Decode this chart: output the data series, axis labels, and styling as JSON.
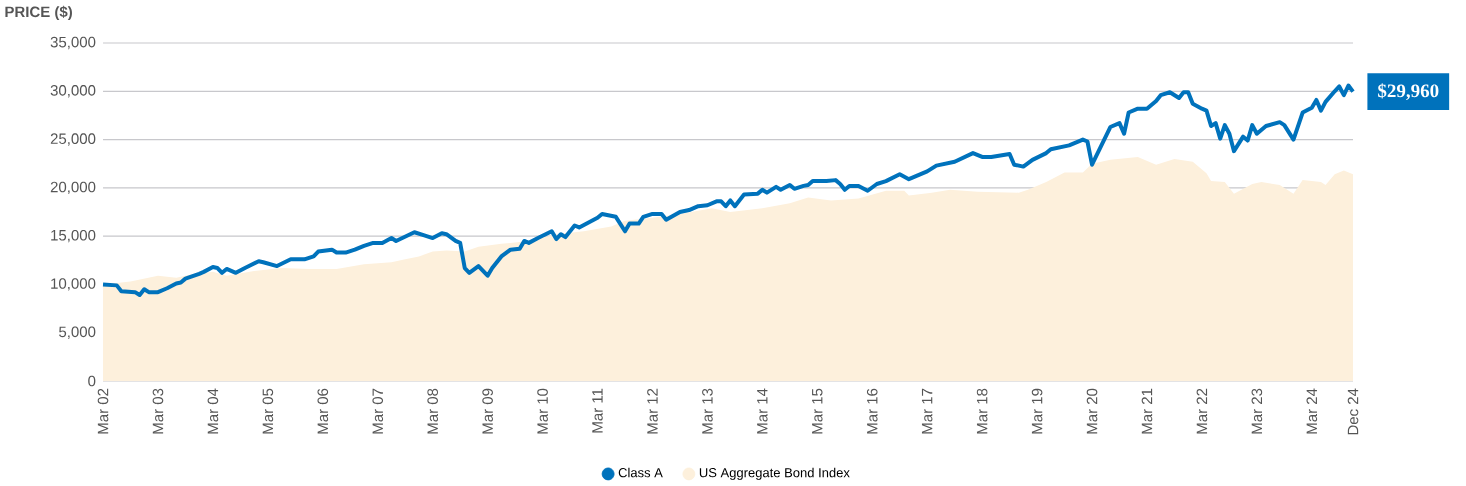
{
  "chart_data": {
    "type": "line",
    "ylabel": "PRICE ($)",
    "xlim": [
      "2002-03",
      "2024-12"
    ],
    "xticks": [
      {
        "value": "2002-03",
        "label": "Mar 02"
      },
      {
        "value": "2003-03",
        "label": "Mar 03"
      },
      {
        "value": "2004-03",
        "label": "Mar 04"
      },
      {
        "value": "2005-03",
        "label": "Mar 05"
      },
      {
        "value": "2006-03",
        "label": "Mar 06"
      },
      {
        "value": "2007-03",
        "label": "Mar 07"
      },
      {
        "value": "2008-03",
        "label": "Mar 08"
      },
      {
        "value": "2009-03",
        "label": "Mar 09"
      },
      {
        "value": "2010-03",
        "label": "Mar 10"
      },
      {
        "value": "2011-03",
        "label": "Mar 11"
      },
      {
        "value": "2012-03",
        "label": "Mar 12"
      },
      {
        "value": "2013-03",
        "label": "Mar 13"
      },
      {
        "value": "2014-03",
        "label": "Mar 14"
      },
      {
        "value": "2015-03",
        "label": "Mar 15"
      },
      {
        "value": "2016-03",
        "label": "Mar 16"
      },
      {
        "value": "2017-03",
        "label": "Mar 17"
      },
      {
        "value": "2018-03",
        "label": "Mar 18"
      },
      {
        "value": "2019-03",
        "label": "Mar 19"
      },
      {
        "value": "2020-03",
        "label": "Mar 20"
      },
      {
        "value": "2021-03",
        "label": "Mar 21"
      },
      {
        "value": "2022-03",
        "label": "Mar 22"
      },
      {
        "value": "2023-03",
        "label": "Mar 23"
      },
      {
        "value": "2024-03",
        "label": "Mar 24"
      },
      {
        "value": "2024-12",
        "label": "Dec 24"
      }
    ],
    "ylim": [
      0,
      35000
    ],
    "yticks": [
      0,
      {
        "value": 5000,
        "label": "5,000"
      },
      {
        "value": 10000,
        "label": "10,000"
      },
      {
        "value": 15000,
        "label": "15,000"
      },
      {
        "value": 20000,
        "label": "20,000"
      },
      {
        "value": 25000,
        "label": "25,000"
      },
      {
        "value": 30000,
        "label": "30,000"
      },
      {
        "value": 35000,
        "label": "35,000"
      }
    ],
    "grid": "y",
    "legend": "bottom",
    "annotations": [
      {
        "text": "$29,960",
        "x": "2024-12",
        "y": 29960
      }
    ],
    "series": [
      {
        "name": "Class A",
        "color": "#0072bc",
        "x": [
          "2002-03",
          "2002-06",
          "2002-07",
          "2002-10",
          "2002-11",
          "2002-12",
          "2003-01",
          "2003-03",
          "2003-05",
          "2003-07",
          "2003-08",
          "2003-09",
          "2003-12",
          "2004-01",
          "2004-03",
          "2004-04",
          "2004-05",
          "2004-06",
          "2004-08",
          "2004-10",
          "2005-01",
          "2005-02",
          "2005-05",
          "2005-08",
          "2005-11",
          "2006-01",
          "2006-02",
          "2006-05",
          "2006-06",
          "2006-08",
          "2006-10",
          "2006-12",
          "2007-02",
          "2007-04",
          "2007-06",
          "2007-07",
          "2007-11",
          "2008-01",
          "2008-03",
          "2008-05",
          "2008-06",
          "2008-08",
          "2008-09",
          "2008-10",
          "2008-11",
          "2009-01",
          "2009-03",
          "2009-04",
          "2009-06",
          "2009-08",
          "2009-10",
          "2009-11",
          "2009-12",
          "2010-02",
          "2010-05",
          "2010-06",
          "2010-07",
          "2010-08",
          "2010-10",
          "2010-11",
          "2011-01",
          "2011-03",
          "2011-04",
          "2011-07",
          "2011-09",
          "2011-10",
          "2011-12",
          "2012-01",
          "2012-03",
          "2012-05",
          "2012-06",
          "2012-09",
          "2012-11",
          "2013-01",
          "2013-03",
          "2013-05",
          "2013-06",
          "2013-07",
          "2013-08",
          "2013-09",
          "2013-11",
          "2014-02",
          "2014-03",
          "2014-04",
          "2014-06",
          "2014-07",
          "2014-09",
          "2014-10",
          "2014-12",
          "2015-01",
          "2015-02",
          "2015-05",
          "2015-07",
          "2015-08",
          "2015-09",
          "2015-10",
          "2015-12",
          "2016-02",
          "2016-04",
          "2016-06",
          "2016-09",
          "2016-11",
          "2017-03",
          "2017-05",
          "2017-09",
          "2018-01",
          "2018-03",
          "2018-05",
          "2018-09",
          "2018-10",
          "2018-12",
          "2019-02",
          "2019-05",
          "2019-06",
          "2019-10",
          "2020-01",
          "2020-02",
          "2020-03",
          "2020-07",
          "2020-09",
          "2020-10",
          "2020-11",
          "2021-01",
          "2021-03",
          "2021-05",
          "2021-06",
          "2021-08",
          "2021-10",
          "2021-11",
          "2021-12",
          "2022-01",
          "2022-03",
          "2022-04",
          "2022-05",
          "2022-06",
          "2022-07",
          "2022-08",
          "2022-09",
          "2022-10",
          "2022-12",
          "2023-01",
          "2023-02",
          "2023-03",
          "2023-05",
          "2023-08",
          "2023-09",
          "2023-11",
          "2024-01",
          "2024-03",
          "2024-04",
          "2024-05",
          "2024-06",
          "2024-08",
          "2024-09",
          "2024-10",
          "2024-11",
          "2024-12"
        ],
        "values": [
          10000,
          9900,
          9300,
          9200,
          8900,
          9500,
          9200,
          9200,
          9600,
          10100,
          10200,
          10600,
          11100,
          11300,
          11800,
          11700,
          11200,
          11600,
          11200,
          11700,
          12400,
          12300,
          11900,
          12600,
          12600,
          12900,
          13400,
          13600,
          13300,
          13300,
          13600,
          14000,
          14300,
          14300,
          14800,
          14500,
          15400,
          15100,
          14800,
          15300,
          15200,
          14500,
          14300,
          11700,
          11200,
          11900,
          10900,
          11700,
          12900,
          13600,
          13700,
          14500,
          14300,
          14800,
          15500,
          14700,
          15200,
          14900,
          16100,
          15900,
          16400,
          16900,
          17300,
          17000,
          15500,
          16300,
          16300,
          17000,
          17300,
          17300,
          16700,
          17500,
          17700,
          18100,
          18200,
          18600,
          18600,
          18100,
          18700,
          18100,
          19300,
          19400,
          19800,
          19500,
          20100,
          19800,
          20300,
          19900,
          20200,
          20300,
          20700,
          20700,
          20800,
          20400,
          19800,
          20200,
          20200,
          19700,
          20400,
          20700,
          21400,
          20900,
          21700,
          22300,
          22700,
          23600,
          23200,
          23200,
          23500,
          22400,
          22200,
          22900,
          23600,
          24000,
          24400,
          25000,
          24800,
          22400,
          26300,
          26700,
          25600,
          27800,
          28200,
          28200,
          29000,
          29600,
          29900,
          29300,
          29900,
          29900,
          28700,
          28200,
          28000,
          26400,
          26700,
          25100,
          26500,
          25600,
          23800,
          25300,
          24900,
          26500,
          25600,
          26400,
          26800,
          26500,
          25000,
          27800,
          28300,
          29100,
          28000,
          28900,
          30000,
          30500,
          29600,
          30600,
          29960
        ]
      },
      {
        "name": "US Aggregate Bond Index",
        "type": "area",
        "color": "#fdf0dc",
        "x": [
          "2002-03",
          "2002-09",
          "2003-03",
          "2003-07",
          "2003-10",
          "2004-03",
          "2004-06",
          "2004-12",
          "2005-06",
          "2005-12",
          "2006-06",
          "2006-12",
          "2007-06",
          "2007-09",
          "2007-12",
          "2008-03",
          "2008-06",
          "2008-10",
          "2009-01",
          "2009-06",
          "2009-12",
          "2010-06",
          "2010-12",
          "2011-06",
          "2011-09",
          "2012-03",
          "2012-09",
          "2013-04",
          "2013-08",
          "2014-03",
          "2014-09",
          "2015-01",
          "2015-06",
          "2015-12",
          "2016-06",
          "2016-10",
          "2016-11",
          "2017-04",
          "2017-08",
          "2018-02",
          "2018-11",
          "2019-01",
          "2019-05",
          "2019-09",
          "2020-01",
          "2020-03",
          "2020-07",
          "2021-01",
          "2021-05",
          "2021-09",
          "2022-01",
          "2022-04",
          "2022-05",
          "2022-08",
          "2022-10",
          "2023-02",
          "2023-04",
          "2023-08",
          "2023-11",
          "2024-01",
          "2024-05",
          "2024-06",
          "2024-08",
          "2024-10",
          "2024-12"
        ],
        "values": [
          10000,
          10300,
          10900,
          10700,
          11000,
          11300,
          10900,
          11400,
          11700,
          11600,
          11600,
          12100,
          12300,
          12600,
          12900,
          13400,
          13500,
          13400,
          13900,
          14200,
          14500,
          15200,
          15500,
          16000,
          16600,
          16900,
          17300,
          17900,
          17500,
          17900,
          18400,
          19000,
          18700,
          18900,
          19700,
          19700,
          19200,
          19500,
          19800,
          19600,
          19500,
          19800,
          20600,
          21600,
          21600,
          22500,
          22900,
          23200,
          22400,
          23000,
          22700,
          21500,
          20700,
          20600,
          19400,
          20400,
          20600,
          20300,
          19400,
          20800,
          20600,
          20300,
          21400,
          21800,
          21400
        ]
      }
    ]
  }
}
